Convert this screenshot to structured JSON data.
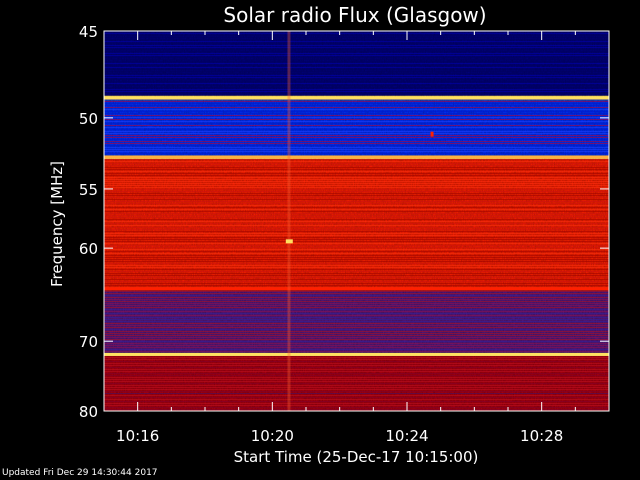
{
  "chart_data": {
    "type": "heatmap",
    "title": "Solar radio Flux (Glasgow)",
    "xlabel": "Start Time (25-Dec-17 10:15:00)",
    "ylabel": "Frequency [MHz]",
    "x_ticks": [
      "10:16",
      "10:20",
      "10:24",
      "10:28"
    ],
    "x_tick_minutes": [
      1,
      5,
      9,
      13
    ],
    "xlim_minutes_after_start": [
      0,
      15
    ],
    "y_ticks": [
      45,
      50,
      55,
      60,
      70,
      80
    ],
    "ylim": [
      45,
      80
    ],
    "y_scale": "reciprocal",
    "colormap": "blue-red-yellow",
    "colors": {
      "low": "#00007f",
      "mid_low": "#0030ff",
      "mid": "#b00010",
      "high": "#ff2000",
      "peak": "#ffe060"
    },
    "frequency_bands": [
      {
        "from": 45,
        "to": 48.6,
        "level": "low"
      },
      {
        "from": 48.6,
        "to": 48.9,
        "level": "peak"
      },
      {
        "from": 48.9,
        "to": 52.5,
        "level": "mid_low"
      },
      {
        "from": 52.5,
        "to": 52.8,
        "level": "peak"
      },
      {
        "from": 52.8,
        "to": 63.8,
        "level": "high"
      },
      {
        "from": 63.8,
        "to": 64.2,
        "level": "high"
      },
      {
        "from": 64.2,
        "to": 71.5,
        "level": "mixed"
      },
      {
        "from": 71.5,
        "to": 71.9,
        "level": "peak"
      },
      {
        "from": 71.9,
        "to": 80,
        "level": "mid"
      }
    ]
  },
  "footer": {
    "updated": "Updated Fri Dec 29 14:30:44 2017"
  }
}
